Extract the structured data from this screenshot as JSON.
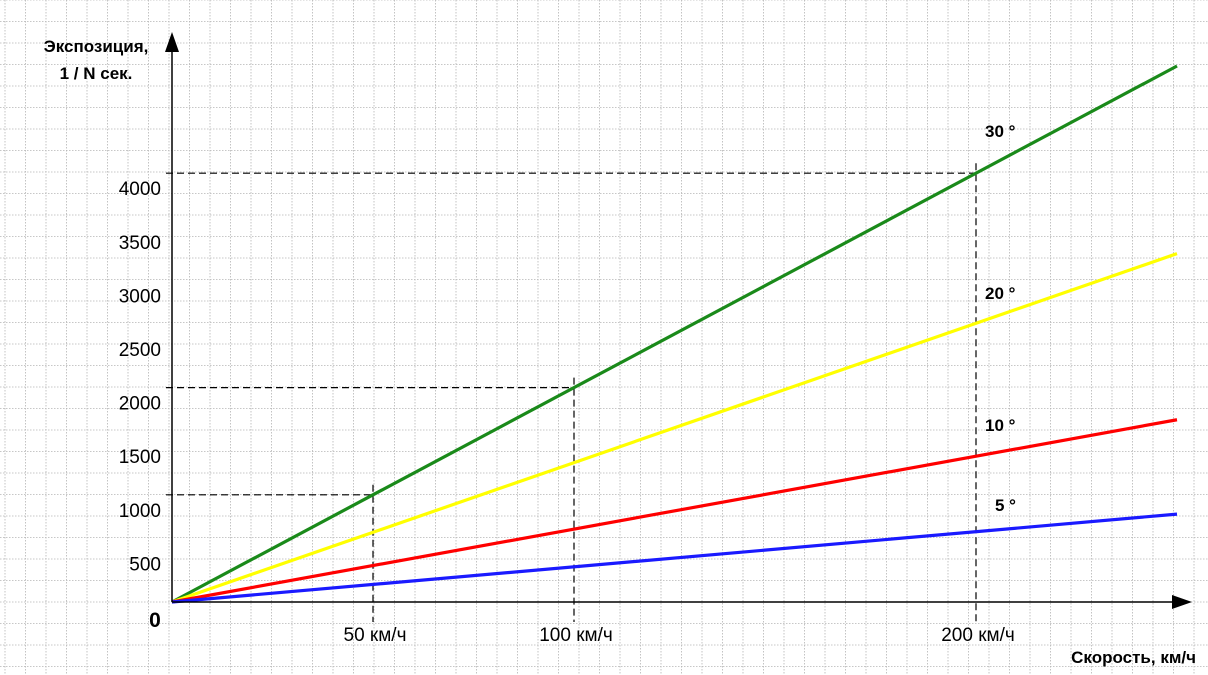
{
  "chart_data": {
    "type": "line",
    "ylabel_line1": "Экспозиция,",
    "ylabel_line2": "1 / N сек.",
    "xlabel": "Скорость, км/ч",
    "origin_label": "0",
    "x_ticks": [
      {
        "value": 50,
        "label": "50 км/ч"
      },
      {
        "value": 100,
        "label": "100 км/ч"
      },
      {
        "value": 200,
        "label": "200 км/ч"
      }
    ],
    "y_ticks": [
      {
        "value": 500,
        "label": "500"
      },
      {
        "value": 1000,
        "label": "1000"
      },
      {
        "value": 1500,
        "label": "1500"
      },
      {
        "value": 2000,
        "label": "2000"
      },
      {
        "value": 2500,
        "label": "2500"
      },
      {
        "value": 3000,
        "label": "3000"
      },
      {
        "value": 3500,
        "label": "3500"
      },
      {
        "value": 4000,
        "label": "4000"
      }
    ],
    "xlim": [
      0,
      250
    ],
    "ylim": [
      0,
      5000
    ],
    "grid": true,
    "series": [
      {
        "name": "30 °",
        "color": "#1a8a1a",
        "x": [
          0,
          250
        ],
        "y": [
          0,
          5000
        ]
      },
      {
        "name": "20 °",
        "color": "#ffff00",
        "x": [
          0,
          250
        ],
        "y": [
          0,
          3250
        ]
      },
      {
        "name": "10 °",
        "color": "#ff0000",
        "x": [
          0,
          250
        ],
        "y": [
          0,
          1700
        ]
      },
      {
        "name": "5 °",
        "color": "#1a1aff",
        "x": [
          0,
          250
        ],
        "y": [
          0,
          820
        ]
      }
    ],
    "reference_points": [
      {
        "x": 50,
        "y": 1000
      },
      {
        "x": 100,
        "y": 2000
      },
      {
        "x": 200,
        "y": 4000
      }
    ]
  }
}
